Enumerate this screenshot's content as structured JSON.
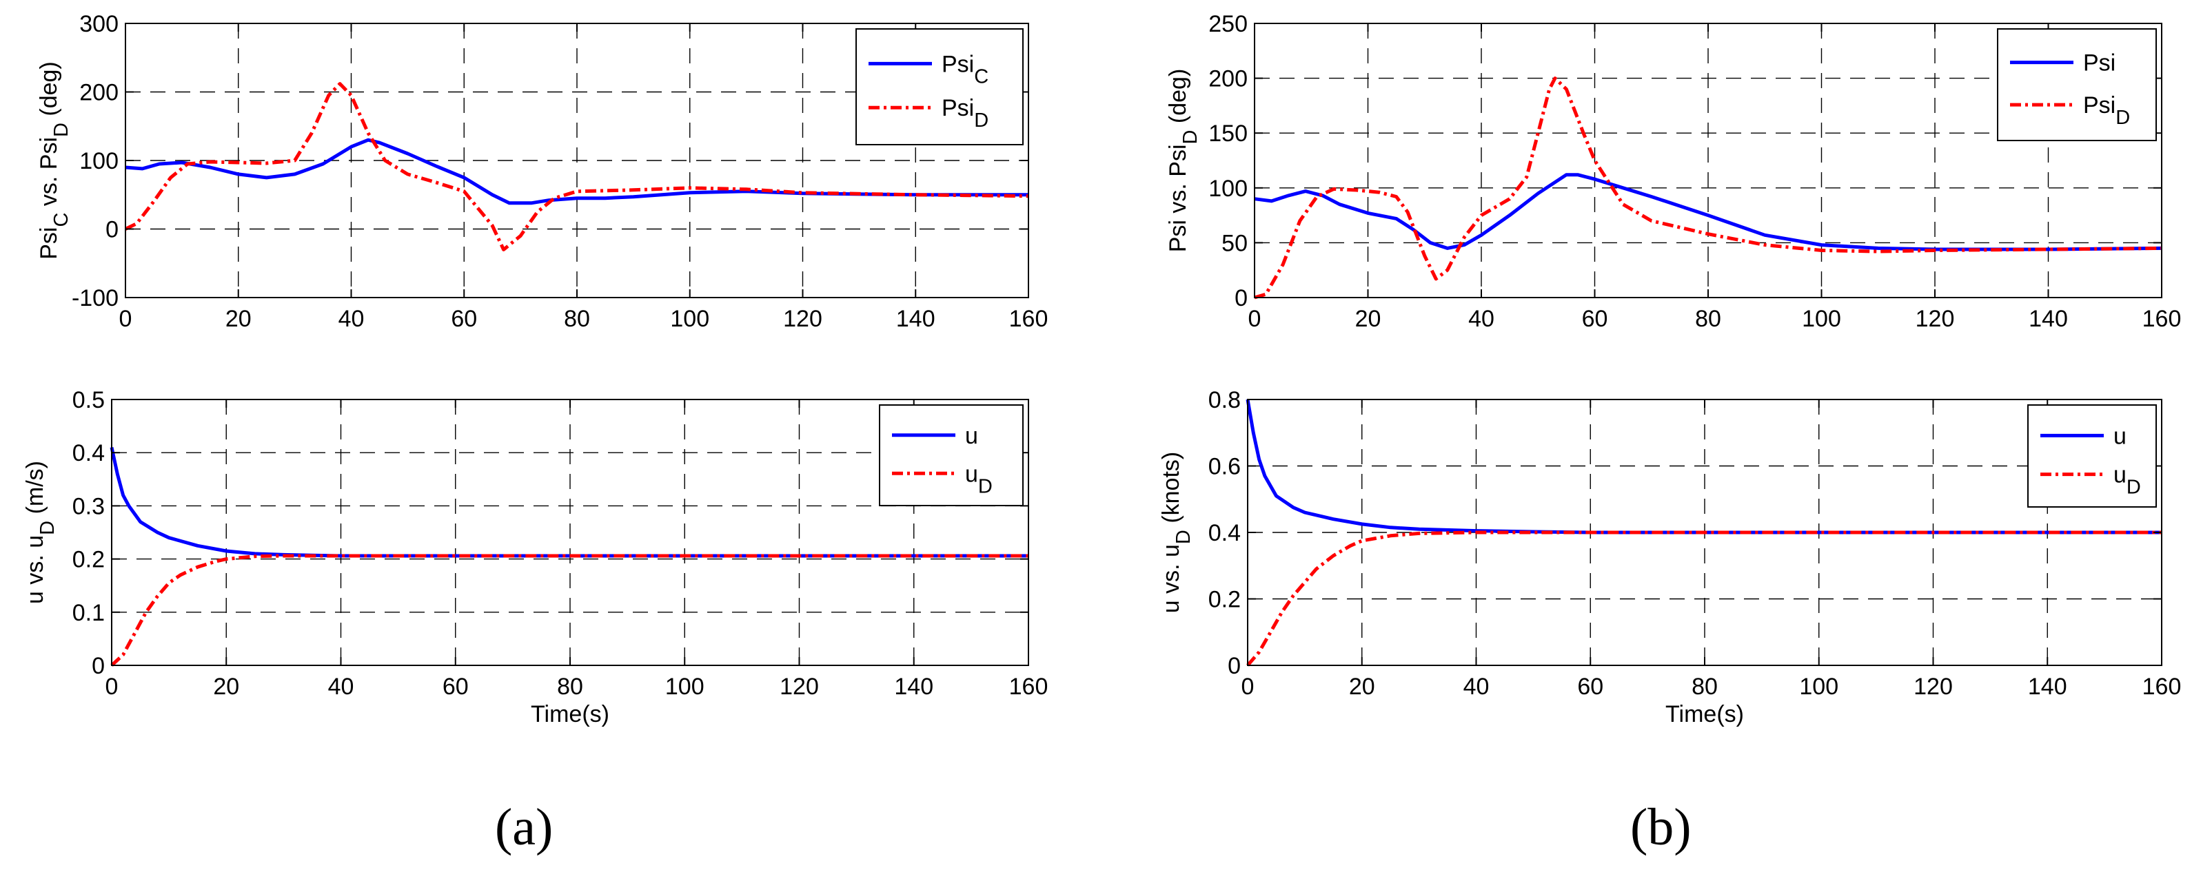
{
  "figure": {
    "panel_labels": [
      "(a)",
      "(b)"
    ]
  },
  "chart_data": [
    {
      "id": "a-top",
      "type": "line",
      "ylabel": "Psi_C vs. Psi_D (deg)",
      "xlabel": "",
      "xlim": [
        0,
        160
      ],
      "ylim": [
        -100,
        300
      ],
      "xticks": [
        0,
        20,
        40,
        60,
        80,
        100,
        120,
        140,
        160
      ],
      "yticks": [
        -100,
        0,
        100,
        200,
        300
      ],
      "grid": true,
      "legend_position": "top-right",
      "series": [
        {
          "name": "Psi_C",
          "color": "#0000ff",
          "style": "solid",
          "x": [
            0,
            3,
            6,
            10,
            15,
            20,
            25,
            30,
            35,
            40,
            43,
            45,
            50,
            55,
            60,
            65,
            68,
            72,
            75,
            80,
            85,
            90,
            100,
            110,
            120,
            140,
            160
          ],
          "y": [
            90,
            88,
            95,
            97,
            90,
            80,
            75,
            80,
            95,
            120,
            130,
            126,
            110,
            92,
            75,
            50,
            38,
            38,
            42,
            45,
            45,
            47,
            53,
            55,
            52,
            50,
            50
          ]
        },
        {
          "name": "Psi_D",
          "color": "#ff0000",
          "style": "dashdot",
          "x": [
            0,
            2,
            5,
            8,
            11,
            15,
            20,
            25,
            30,
            33,
            36,
            38,
            40,
            43,
            46,
            50,
            55,
            60,
            62,
            65,
            67,
            70,
            73,
            76,
            80,
            90,
            100,
            110,
            120,
            140,
            160
          ],
          "y": [
            0,
            8,
            40,
            75,
            95,
            98,
            97,
            96,
            100,
            140,
            195,
            212,
            195,
            140,
            100,
            80,
            68,
            55,
            35,
            5,
            -30,
            -10,
            25,
            45,
            55,
            57,
            60,
            58,
            53,
            50,
            48
          ]
        }
      ]
    },
    {
      "id": "a-bottom",
      "type": "line",
      "ylabel": "u vs. u_D (m/s)",
      "xlabel": "Time(s)",
      "xlim": [
        0,
        160
      ],
      "ylim": [
        0,
        0.5
      ],
      "xticks": [
        0,
        20,
        40,
        60,
        80,
        100,
        120,
        140,
        160
      ],
      "yticks": [
        0,
        0.1,
        0.2,
        0.3,
        0.4,
        0.5
      ],
      "grid": true,
      "legend_position": "top-right",
      "series": [
        {
          "name": "u",
          "color": "#0000ff",
          "style": "solid",
          "x": [
            0,
            1,
            2,
            3,
            5,
            8,
            10,
            15,
            20,
            25,
            30,
            35,
            40,
            60,
            100,
            160
          ],
          "y": [
            0.41,
            0.36,
            0.32,
            0.3,
            0.27,
            0.25,
            0.24,
            0.225,
            0.215,
            0.21,
            0.208,
            0.207,
            0.206,
            0.206,
            0.206,
            0.206
          ]
        },
        {
          "name": "u_D",
          "color": "#ff0000",
          "style": "dashdot",
          "x": [
            0,
            2,
            4,
            6,
            8,
            10,
            12,
            15,
            18,
            20,
            25,
            30,
            40,
            60,
            100,
            160
          ],
          "y": [
            0,
            0.02,
            0.06,
            0.1,
            0.13,
            0.155,
            0.17,
            0.185,
            0.195,
            0.2,
            0.205,
            0.206,
            0.206,
            0.206,
            0.206,
            0.206
          ]
        }
      ]
    },
    {
      "id": "b-top",
      "type": "line",
      "ylabel": "Psi vs. Psi_D (deg)",
      "xlabel": "",
      "xlim": [
        0,
        160
      ],
      "ylim": [
        0,
        250
      ],
      "xticks": [
        0,
        20,
        40,
        60,
        80,
        100,
        120,
        140,
        160
      ],
      "yticks": [
        0,
        50,
        100,
        150,
        200,
        250
      ],
      "grid": true,
      "legend_position": "top-right",
      "series": [
        {
          "name": "Psi",
          "color": "#0000ff",
          "style": "solid",
          "x": [
            0,
            3,
            6,
            9,
            12,
            15,
            20,
            25,
            28,
            31,
            34,
            37,
            40,
            45,
            50,
            55,
            57,
            60,
            65,
            70,
            80,
            90,
            100,
            110,
            120,
            140,
            160
          ],
          "y": [
            90,
            88,
            93,
            97,
            93,
            85,
            77,
            72,
            62,
            50,
            45,
            48,
            57,
            75,
            95,
            112,
            112,
            108,
            100,
            92,
            75,
            57,
            48,
            45,
            44,
            44,
            45
          ]
        },
        {
          "name": "Psi_D",
          "color": "#ff0000",
          "style": "dashdot",
          "x": [
            0,
            2,
            5,
            8,
            11,
            14,
            18,
            22,
            25,
            27,
            30,
            32,
            34,
            37,
            40,
            45,
            48,
            50,
            52,
            53,
            55,
            58,
            60,
            65,
            70,
            80,
            90,
            100,
            110,
            120,
            140,
            160
          ],
          "y": [
            0,
            3,
            30,
            70,
            92,
            99,
            98,
            96,
            92,
            78,
            38,
            17,
            25,
            55,
            75,
            90,
            110,
            150,
            190,
            200,
            190,
            150,
            125,
            85,
            70,
            58,
            48,
            43,
            42,
            43,
            44,
            45
          ]
        }
      ]
    },
    {
      "id": "b-bottom",
      "type": "line",
      "ylabel": "u vs. u_D (knots)",
      "xlabel": "Time(s)",
      "xlim": [
        0,
        160
      ],
      "ylim": [
        0,
        0.8
      ],
      "xticks": [
        0,
        20,
        40,
        60,
        80,
        100,
        120,
        140,
        160
      ],
      "yticks": [
        0,
        0.2,
        0.4,
        0.6,
        0.8
      ],
      "grid": true,
      "legend_position": "top-right",
      "series": [
        {
          "name": "u",
          "color": "#0000ff",
          "style": "solid",
          "x": [
            0,
            1,
            2,
            3,
            5,
            8,
            10,
            15,
            20,
            25,
            30,
            40,
            50,
            60,
            100,
            160
          ],
          "y": [
            0.8,
            0.7,
            0.62,
            0.57,
            0.51,
            0.475,
            0.46,
            0.44,
            0.425,
            0.415,
            0.41,
            0.405,
            0.402,
            0.4,
            0.4,
            0.4
          ]
        },
        {
          "name": "u_D",
          "color": "#ff0000",
          "style": "dashdot",
          "x": [
            0,
            2,
            4,
            6,
            8,
            10,
            12,
            15,
            18,
            20,
            25,
            30,
            40,
            60,
            100,
            160
          ],
          "y": [
            0,
            0.04,
            0.1,
            0.16,
            0.21,
            0.25,
            0.29,
            0.33,
            0.36,
            0.375,
            0.39,
            0.397,
            0.4,
            0.4,
            0.4,
            0.4
          ]
        }
      ]
    }
  ]
}
